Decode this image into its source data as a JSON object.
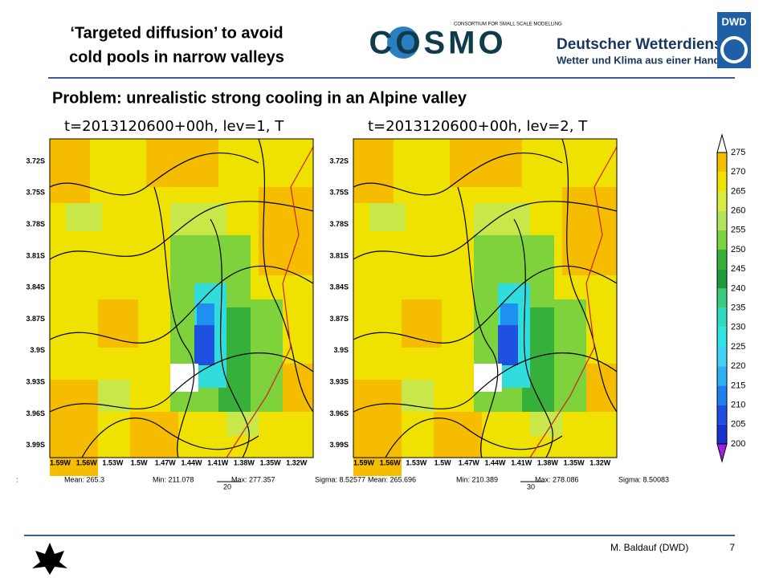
{
  "header": {
    "title_lines": [
      "‘Targeted diffusion’ to avoid",
      "cold pools in narrow valleys"
    ],
    "logo": "COSMO",
    "logo_tagline": "CONSORTIUM FOR SMALL SCALE MODELLING",
    "org_name": "Deutscher Wetterdienst",
    "org_tagline": "Wetter und Klima aus einer Hand",
    "org_badge": "DWD"
  },
  "subtitle": "Problem: unrealistic strong cooling in an Alpine valley",
  "panels": [
    {
      "title": "t=2013120600+00h, lev=1, T",
      "y_labels": [
        "3.72S",
        "3.75S",
        "3.78S",
        "3.81S",
        "3.84S",
        "3.87S",
        "3.9S",
        "3.93S",
        "3.96S",
        "3.99S"
      ],
      "x_labels": [
        "1.59W",
        "1.56W",
        "1.53W",
        "1.5W",
        "1.47W",
        "1.44W",
        "1.41W",
        "1.38W",
        "1.35W",
        "1.32W"
      ],
      "prefix": ":",
      "stats": [
        "Mean: 265.3",
        "Min: 211.078",
        "Max: 277.357",
        "Sigma: 8.52577"
      ],
      "marker": "20"
    },
    {
      "title": "t=2013120600+00h, lev=2, T",
      "y_labels": [
        "3.72S",
        "3.75S",
        "3.78S",
        "3.81S",
        "3.84S",
        "3.87S",
        "3.9S",
        "3.93S",
        "3.96S",
        "3.99S"
      ],
      "x_labels": [
        "1.59W",
        "1.56W",
        "1.53W",
        "1.5W",
        "1.47W",
        "1.44W",
        "1.41W",
        "1.38W",
        "1.35W",
        "1.32W"
      ],
      "stats": [
        "Mean: 265.696",
        "Min: 210.389",
        "Max: 278.086",
        "Sigma: 8.50083"
      ],
      "marker": "30"
    }
  ],
  "colorbar": {
    "labels": [
      275,
      270,
      265,
      260,
      255,
      250,
      245,
      240,
      235,
      230,
      225,
      220,
      215,
      210,
      205,
      200
    ]
  },
  "footer": {
    "author": "M. Baldauf (DWD)",
    "page": 7
  }
}
